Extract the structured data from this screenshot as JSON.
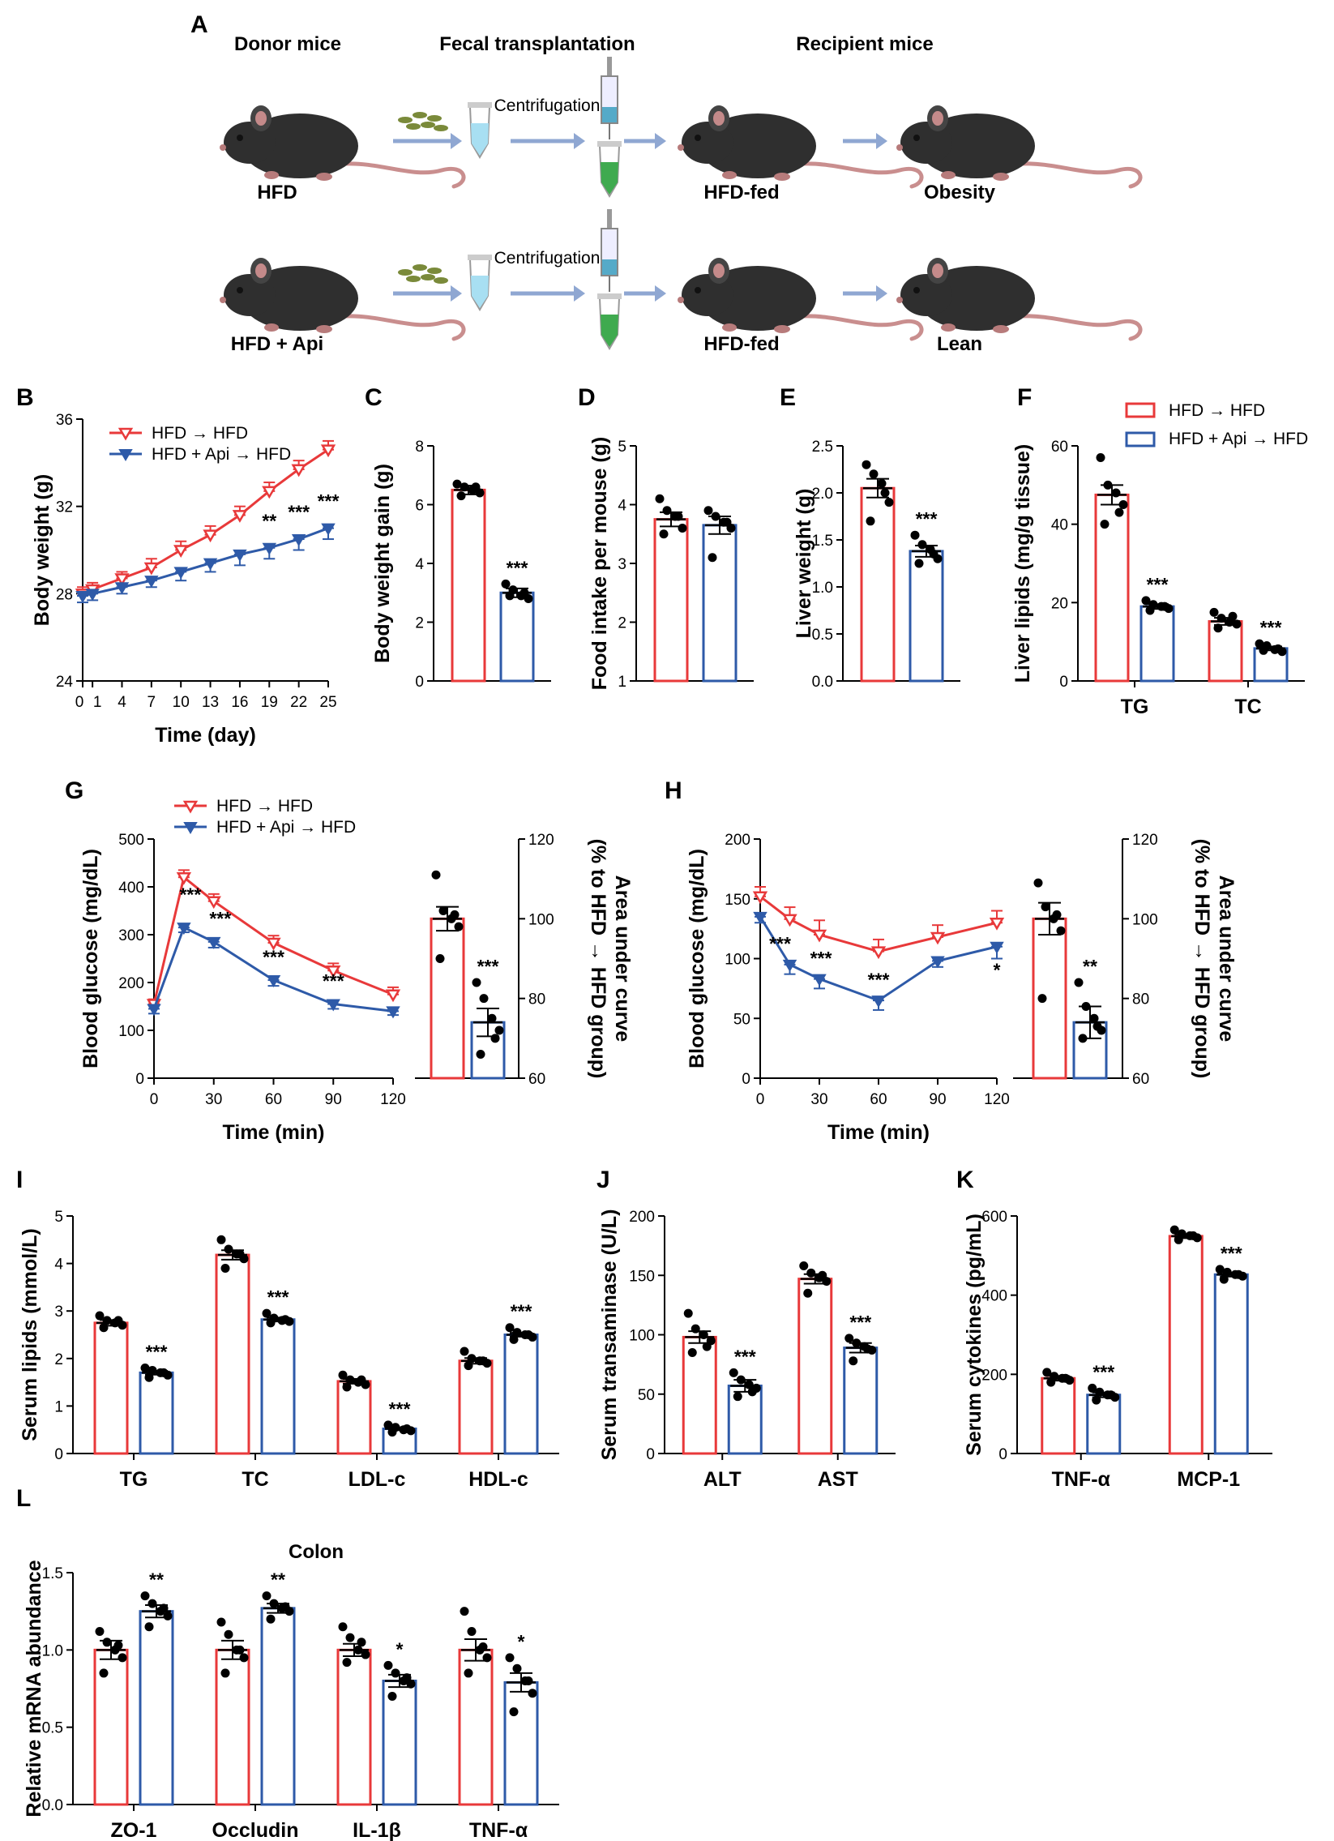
{
  "colors": {
    "hfd": "#e8393a",
    "api": "#2e5aa8",
    "arrow": "#8fa7d2",
    "mouse": "#2f2f2f",
    "tail": "#c98e8e",
    "pellet": "#7a8a3a",
    "tube_blue": "#a8dff2",
    "tube_green": "#3faa4f"
  },
  "schematic": {
    "panel": "A",
    "headers": [
      "Donor mice",
      "Fecal transplantation",
      "Recipient mice"
    ],
    "row1": {
      "donor": "HFD",
      "step": "Centrifugation",
      "recipient": "HFD-fed",
      "outcome": "Obesity"
    },
    "row2": {
      "donor": "HFD + Api",
      "step": "Centrifugation",
      "recipient": "HFD-fed",
      "outcome": "Lean"
    }
  },
  "legend": {
    "hfd": "HFD → HFD",
    "api": "HFD + Api → HFD"
  },
  "chart_data": [
    {
      "id": "B",
      "type": "line",
      "xlabel": "Time (day)",
      "ylabel": "Body weight (g)",
      "ylim": [
        24,
        36
      ],
      "yticks": [
        24,
        28,
        32,
        36
      ],
      "xticks": [
        "0",
        "1",
        "4",
        "7",
        "10",
        "13",
        "16",
        "19",
        "22",
        "25"
      ],
      "x": [
        0,
        1,
        4,
        7,
        10,
        13,
        16,
        19,
        22,
        25
      ],
      "series": [
        {
          "name": "HFD → HFD",
          "values": [
            28.0,
            28.2,
            28.7,
            29.2,
            30.0,
            30.7,
            31.6,
            32.7,
            33.7,
            34.6
          ],
          "err": [
            0.3,
            0.3,
            0.3,
            0.4,
            0.4,
            0.4,
            0.4,
            0.4,
            0.4,
            0.4
          ]
        },
        {
          "name": "HFD + Api → HFD",
          "values": [
            27.9,
            28.0,
            28.3,
            28.6,
            29.0,
            29.4,
            29.8,
            30.1,
            30.5,
            31.0
          ],
          "err": [
            0.3,
            0.3,
            0.3,
            0.3,
            0.4,
            0.4,
            0.5,
            0.5,
            0.5,
            0.5
          ]
        }
      ],
      "annotations": [
        {
          "x": 19,
          "text": "**"
        },
        {
          "x": 22,
          "text": "***"
        },
        {
          "x": 25,
          "text": "***"
        }
      ]
    },
    {
      "id": "C",
      "type": "bar",
      "ylabel": "Body weight gain (g)",
      "ylim": [
        0,
        8
      ],
      "yticks": [
        0,
        2,
        4,
        6,
        8
      ],
      "categories": [
        "HFD → HFD",
        "HFD + Api → HFD"
      ],
      "values": [
        6.5,
        3.0
      ],
      "err": [
        0.15,
        0.15
      ],
      "points": [
        [
          6.7,
          6.6,
          6.5,
          6.4,
          6.3,
          6.6
        ],
        [
          3.3,
          3.1,
          2.9,
          2.8,
          2.9,
          3.0
        ]
      ],
      "sig": "***"
    },
    {
      "id": "D",
      "type": "bar",
      "ylabel": "Food intake per mouse (g)",
      "ylim": [
        1,
        5
      ],
      "yticks": [
        1,
        2,
        3,
        4,
        5
      ],
      "categories": [
        "HFD → HFD",
        "HFD + Api → HFD"
      ],
      "values": [
        3.75,
        3.65
      ],
      "err": [
        0.12,
        0.15
      ],
      "points": [
        [
          4.1,
          3.9,
          3.8,
          3.6,
          3.5,
          3.8
        ],
        [
          3.9,
          3.8,
          3.7,
          3.6,
          3.1,
          3.7
        ]
      ],
      "sig": ""
    },
    {
      "id": "E",
      "type": "bar",
      "ylabel": "Liver weight (g)",
      "ylim": [
        0,
        2.5
      ],
      "yticks": [
        0.0,
        0.5,
        1.0,
        1.5,
        2.0,
        2.5
      ],
      "categories": [
        "HFD → HFD",
        "HFD + Api → HFD"
      ],
      "values": [
        2.05,
        1.38
      ],
      "err": [
        0.1,
        0.06
      ],
      "points": [
        [
          2.3,
          2.2,
          2.1,
          1.9,
          1.7,
          2.0
        ],
        [
          1.55,
          1.45,
          1.4,
          1.3,
          1.25,
          1.35
        ]
      ],
      "sig": "***"
    },
    {
      "id": "F",
      "type": "bar",
      "ylabel": "Liver lipids (mg/g tissue)",
      "ylim": [
        0,
        60
      ],
      "yticks": [
        0,
        20,
        40,
        60
      ],
      "categories": [
        "TG",
        "TC"
      ],
      "series": [
        {
          "name": "HFD → HFD",
          "values": [
            47.5,
            15.2
          ],
          "err": [
            2.5,
            0.9
          ],
          "points": [
            [
              57,
              50,
              48,
              45,
              40,
              43
            ],
            [
              17.5,
              16,
              15,
              14.5,
              13.5,
              16.5
            ]
          ]
        },
        {
          "name": "HFD + Api → HFD",
          "values": [
            19.0,
            8.3
          ],
          "err": [
            0.6,
            0.5
          ],
          "points": [
            [
              20.5,
              19.5,
              19,
              18.5,
              18,
              19
            ],
            [
              9.5,
              9,
              8,
              7.5,
              7.8,
              8.2
            ]
          ]
        }
      ],
      "sig": [
        "***",
        "***"
      ]
    },
    {
      "id": "G",
      "type": "line",
      "xlabel": "Time (min)",
      "ylabel": "Blood glucose (mg/dL)",
      "ylim": [
        0,
        500
      ],
      "yticks": [
        0,
        100,
        200,
        300,
        400,
        500
      ],
      "x": [
        0,
        15,
        30,
        60,
        90,
        120
      ],
      "series": [
        {
          "name": "HFD → HFD",
          "values": [
            155,
            420,
            370,
            283,
            225,
            175
          ],
          "err": [
            10,
            15,
            15,
            15,
            15,
            15
          ]
        },
        {
          "name": "HFD + Api → HFD",
          "values": [
            145,
            315,
            285,
            205,
            155,
            140
          ],
          "err": [
            10,
            10,
            12,
            12,
            10,
            8
          ]
        }
      ],
      "annotations": [
        {
          "x": 15,
          "text": "***"
        },
        {
          "x": 30,
          "text": "***"
        },
        {
          "x": 60,
          "text": "***"
        },
        {
          "x": 90,
          "text": "***"
        }
      ]
    },
    {
      "id": "G-AUC",
      "type": "bar",
      "ylabel": "Area under curve (% to HFD → HFD group)",
      "ylim": [
        60,
        120
      ],
      "yticks": [
        60,
        80,
        100,
        120
      ],
      "values": [
        100,
        74
      ],
      "err": [
        3,
        3.5
      ],
      "points": [
        [
          111,
          102,
          100,
          98,
          90,
          101
        ],
        [
          84,
          80,
          75,
          72,
          66,
          70
        ]
      ],
      "sig": "***"
    },
    {
      "id": "H",
      "type": "line",
      "xlabel": "Time (min)",
      "ylabel": "Blood glucose (mg/dL)",
      "ylim": [
        0,
        200
      ],
      "yticks": [
        0,
        50,
        100,
        150,
        200
      ],
      "x": [
        0,
        15,
        30,
        60,
        90,
        120
      ],
      "series": [
        {
          "name": "HFD → HFD",
          "values": [
            152,
            133,
            120,
            106,
            118,
            130
          ],
          "err": [
            8,
            10,
            12,
            10,
            10,
            10
          ]
        },
        {
          "name": "HFD + Api → HFD",
          "values": [
            135,
            95,
            83,
            65,
            98,
            110
          ],
          "err": [
            5,
            8,
            8,
            8,
            5,
            10
          ]
        }
      ],
      "annotations": [
        {
          "x": 15,
          "text": "***"
        },
        {
          "x": 30,
          "text": "***"
        },
        {
          "x": 60,
          "text": "***"
        },
        {
          "x": 120,
          "text": "*"
        }
      ]
    },
    {
      "id": "H-AUC",
      "type": "bar",
      "ylabel": "Area under curve (% to HFD → HFD group)",
      "ylim": [
        60,
        120
      ],
      "yticks": [
        60,
        80,
        100,
        120
      ],
      "values": [
        100,
        74
      ],
      "err": [
        4,
        4
      ],
      "points": [
        [
          109,
          103,
          100,
          97,
          80,
          101
        ],
        [
          84,
          78,
          75,
          72,
          70,
          73
        ]
      ],
      "sig": "**"
    },
    {
      "id": "I",
      "type": "bar",
      "ylabel": "Serum lipids (mmol/L)",
      "ylim": [
        0,
        5
      ],
      "yticks": [
        0,
        1,
        2,
        3,
        4,
        5
      ],
      "categories": [
        "TG",
        "TC",
        "LDL-c",
        "HDL-c"
      ],
      "series": [
        {
          "name": "HFD → HFD",
          "values": [
            2.75,
            4.18,
            1.52,
            1.95
          ],
          "err": [
            0.06,
            0.1,
            0.05,
            0.06
          ],
          "points": [
            [
              2.9,
              2.8,
              2.75,
              2.7,
              2.65,
              2.8
            ],
            [
              4.5,
              4.3,
              4.2,
              4.1,
              3.9,
              4.2
            ],
            [
              1.65,
              1.55,
              1.5,
              1.45,
              1.4,
              1.55
            ],
            [
              2.15,
              2.0,
              1.95,
              1.9,
              1.85,
              1.95
            ]
          ]
        },
        {
          "name": "HFD + Api → HFD",
          "values": [
            1.7,
            2.82,
            0.52,
            2.5
          ],
          "err": [
            0.04,
            0.04,
            0.03,
            0.04
          ],
          "points": [
            [
              1.8,
              1.75,
              1.7,
              1.65,
              1.6,
              1.7
            ],
            [
              2.95,
              2.85,
              2.8,
              2.78,
              2.75,
              2.82
            ],
            [
              0.6,
              0.55,
              0.5,
              0.48,
              0.45,
              0.52
            ],
            [
              2.65,
              2.55,
              2.5,
              2.45,
              2.4,
              2.5
            ]
          ]
        }
      ],
      "sig": [
        "***",
        "***",
        "***",
        "***"
      ]
    },
    {
      "id": "J",
      "type": "bar",
      "ylabel": "Serum transaminase (U/L)",
      "ylim": [
        0,
        200
      ],
      "yticks": [
        0,
        50,
        100,
        150,
        200
      ],
      "categories": [
        "ALT",
        "AST"
      ],
      "series": [
        {
          "name": "HFD → HFD",
          "values": [
            98,
            147
          ],
          "err": [
            5,
            4
          ],
          "points": [
            [
              118,
              105,
              100,
              95,
              85,
              90
            ],
            [
              158,
              152,
              148,
              145,
              135,
              150
            ]
          ]
        },
        {
          "name": "HFD + Api → HFD",
          "values": [
            57,
            89
          ],
          "err": [
            5,
            4
          ],
          "points": [
            [
              68,
              62,
              58,
              55,
              48,
              52
            ],
            [
              97,
              93,
              90,
              87,
              78,
              88
            ]
          ]
        }
      ],
      "sig": [
        "***",
        "***"
      ]
    },
    {
      "id": "K",
      "type": "bar",
      "ylabel": "Serum cytokines (pg/mL)",
      "ylim": [
        0,
        600
      ],
      "yticks": [
        0,
        200,
        400,
        600
      ],
      "categories": [
        "TNF-α",
        "MCP-1"
      ],
      "series": [
        {
          "name": "HFD → HFD",
          "values": [
            190,
            549
          ],
          "err": [
            6,
            5
          ],
          "points": [
            [
              205,
              195,
              190,
              185,
              180,
              190
            ],
            [
              565,
              555,
              550,
              545,
              540,
              550
            ]
          ]
        },
        {
          "name": "HFD + Api → HFD",
          "values": [
            148,
            452
          ],
          "err": [
            6,
            5
          ],
          "points": [
            [
              165,
              155,
              148,
              142,
              135,
              148
            ],
            [
              465,
              458,
              452,
              448,
              440,
              452
            ]
          ]
        }
      ],
      "sig": [
        "***",
        "***"
      ]
    },
    {
      "id": "L",
      "type": "bar",
      "title": "Colon",
      "ylabel": "Relative mRNA abundance",
      "ylim": [
        0,
        1.5
      ],
      "yticks": [
        0.0,
        0.5,
        1.0,
        1.5
      ],
      "categories": [
        "ZO-1",
        "Occludin",
        "IL-1β",
        "TNF-α"
      ],
      "series": [
        {
          "name": "HFD → HFD",
          "values": [
            1.0,
            1.0,
            1.0,
            1.0
          ],
          "err": [
            0.06,
            0.06,
            0.04,
            0.07
          ],
          "points": [
            [
              1.12,
              1.05,
              1.0,
              0.95,
              0.85,
              1.03
            ],
            [
              1.18,
              1.1,
              1.0,
              0.95,
              0.85,
              1.0
            ],
            [
              1.15,
              1.08,
              1.0,
              0.97,
              0.92,
              1.05
            ],
            [
              1.25,
              1.12,
              1.0,
              0.95,
              0.85,
              1.02
            ]
          ]
        },
        {
          "name": "HFD + Api → HFD",
          "values": [
            1.25,
            1.27,
            0.8,
            0.79
          ],
          "err": [
            0.04,
            0.03,
            0.04,
            0.06
          ],
          "points": [
            [
              1.35,
              1.3,
              1.25,
              1.22,
              1.15,
              1.27
            ],
            [
              1.35,
              1.3,
              1.27,
              1.25,
              1.2,
              1.28
            ],
            [
              0.9,
              0.85,
              0.8,
              0.78,
              0.7,
              0.82
            ],
            [
              0.95,
              0.88,
              0.8,
              0.72,
              0.6,
              0.8
            ]
          ]
        }
      ],
      "sig": [
        "**",
        "**",
        "*",
        "*"
      ]
    }
  ]
}
